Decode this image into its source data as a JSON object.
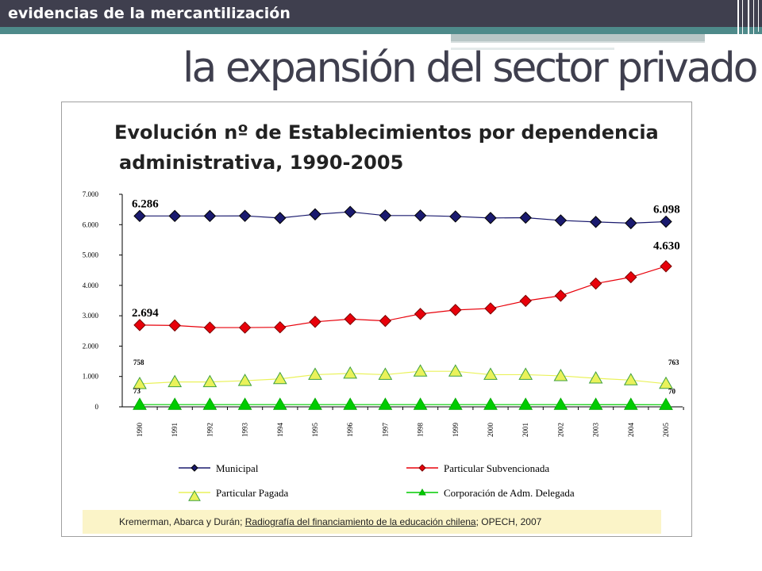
{
  "header": {
    "section_label": "evidencias de la mercantilización",
    "title": "la expansión del sector privado"
  },
  "colors": {
    "topbar": "#3f3f4e",
    "accent_teal": "#4e8a8a",
    "municipal": "#1a1a6e",
    "subvencionada": "#e8000a",
    "pagada": "#eaf25a",
    "corporacion": "#00cc00"
  },
  "chart_data": {
    "type": "line",
    "title_line1": "Evolución nº de Establecimientos por dependencia",
    "title_line2": "administrativa, 1990-2005",
    "categories": [
      "1990",
      "1991",
      "1992",
      "1993",
      "1994",
      "1995",
      "1996",
      "1997",
      "1998",
      "1999",
      "2000",
      "2001",
      "2002",
      "2003",
      "2004",
      "2005"
    ],
    "ylim": [
      0,
      7000
    ],
    "yticks": [
      "0",
      "1.000",
      "2.000",
      "3.000",
      "4.000",
      "5.000",
      "6.000",
      "7.000"
    ],
    "grid": false,
    "legend_position": "bottom",
    "series": [
      {
        "name": "Municipal",
        "marker": "diamond",
        "values": [
          6286,
          6286,
          6286,
          6290,
          6220,
          6340,
          6420,
          6300,
          6300,
          6270,
          6220,
          6230,
          6140,
          6090,
          6050,
          6098
        ]
      },
      {
        "name": "Particular Subvencionada",
        "marker": "diamond",
        "values": [
          2694,
          2680,
          2610,
          2610,
          2620,
          2800,
          2890,
          2830,
          3060,
          3190,
          3240,
          3490,
          3660,
          4060,
          4270,
          4630
        ]
      },
      {
        "name": "Particular Pagada",
        "marker": "triangle",
        "values": [
          758,
          820,
          820,
          860,
          920,
          1060,
          1100,
          1060,
          1170,
          1170,
          1060,
          1060,
          1020,
          940,
          880,
          763
        ]
      },
      {
        "name": "Corporación de Adm. Delegada",
        "marker": "triangle",
        "values": [
          73,
          73,
          73,
          73,
          73,
          73,
          73,
          73,
          73,
          73,
          73,
          73,
          73,
          72,
          71,
          70
        ]
      }
    ],
    "data_labels": [
      {
        "series": 0,
        "index": 0,
        "text": "6.286",
        "size": "large"
      },
      {
        "series": 0,
        "index": 15,
        "text": "6.098",
        "size": "large"
      },
      {
        "series": 1,
        "index": 0,
        "text": "2.694",
        "size": "large"
      },
      {
        "series": 1,
        "index": 15,
        "text": "4.630",
        "size": "large"
      },
      {
        "series": 2,
        "index": 0,
        "text": "758",
        "size": "small"
      },
      {
        "series": 2,
        "index": 15,
        "text": "763",
        "size": "small"
      },
      {
        "series": 3,
        "index": 0,
        "text": "73",
        "size": "small"
      },
      {
        "series": 3,
        "index": 15,
        "text": "70",
        "size": "small"
      }
    ]
  },
  "source": {
    "prefix": "Kremerman, Abarca y Durán; ",
    "link": "Radiografía del financiamiento de la educación chilena",
    "suffix": "; OPECH, 2007"
  }
}
